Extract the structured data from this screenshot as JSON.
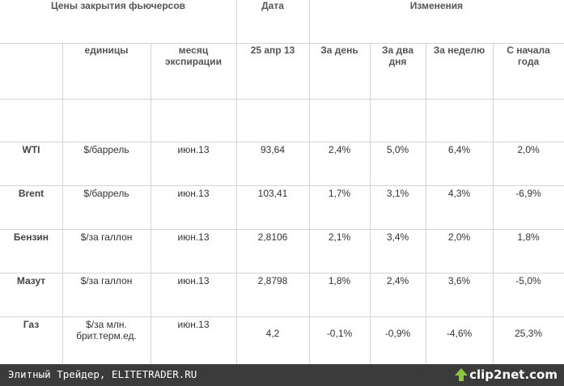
{
  "table": {
    "header": [
      "Цены закрытия фьючерсов",
      "Дата",
      "Изменения"
    ],
    "subheader": [
      "единицы",
      "месяц экспирации",
      "25 апр 13",
      "За день",
      "За два дня",
      "За неделю",
      "С начала года"
    ],
    "rows": [
      [
        "WTI",
        "$/баррель",
        "июн.13",
        "93,64",
        "2,4%",
        "5,0%",
        "6,4%",
        "2,0%"
      ],
      [
        "Brent",
        "$/баррель",
        "июн.13",
        "103,41",
        "1,7%",
        "3,1%",
        "4,3%",
        "-6,9%"
      ],
      [
        "Бензин",
        "$/за галлон",
        "июн.13",
        "2,8106",
        "2,1%",
        "3,4%",
        "2,0%",
        "1,8%"
      ],
      [
        "Мазут",
        "$/за галлон",
        "июн.13",
        "2,8798",
        "1,8%",
        "2,4%",
        "3,6%",
        "-5,0%"
      ],
      [
        "Газ",
        "$/за млн. брит.терм.ед.",
        "июн.13",
        "4,2",
        "-0,1%",
        "-0,9%",
        "-4,6%",
        "25,3%"
      ]
    ]
  },
  "footer": {
    "caption": "Элитный Трейдер, ELITETRADER.RU",
    "logo": "clip2net.com"
  }
}
